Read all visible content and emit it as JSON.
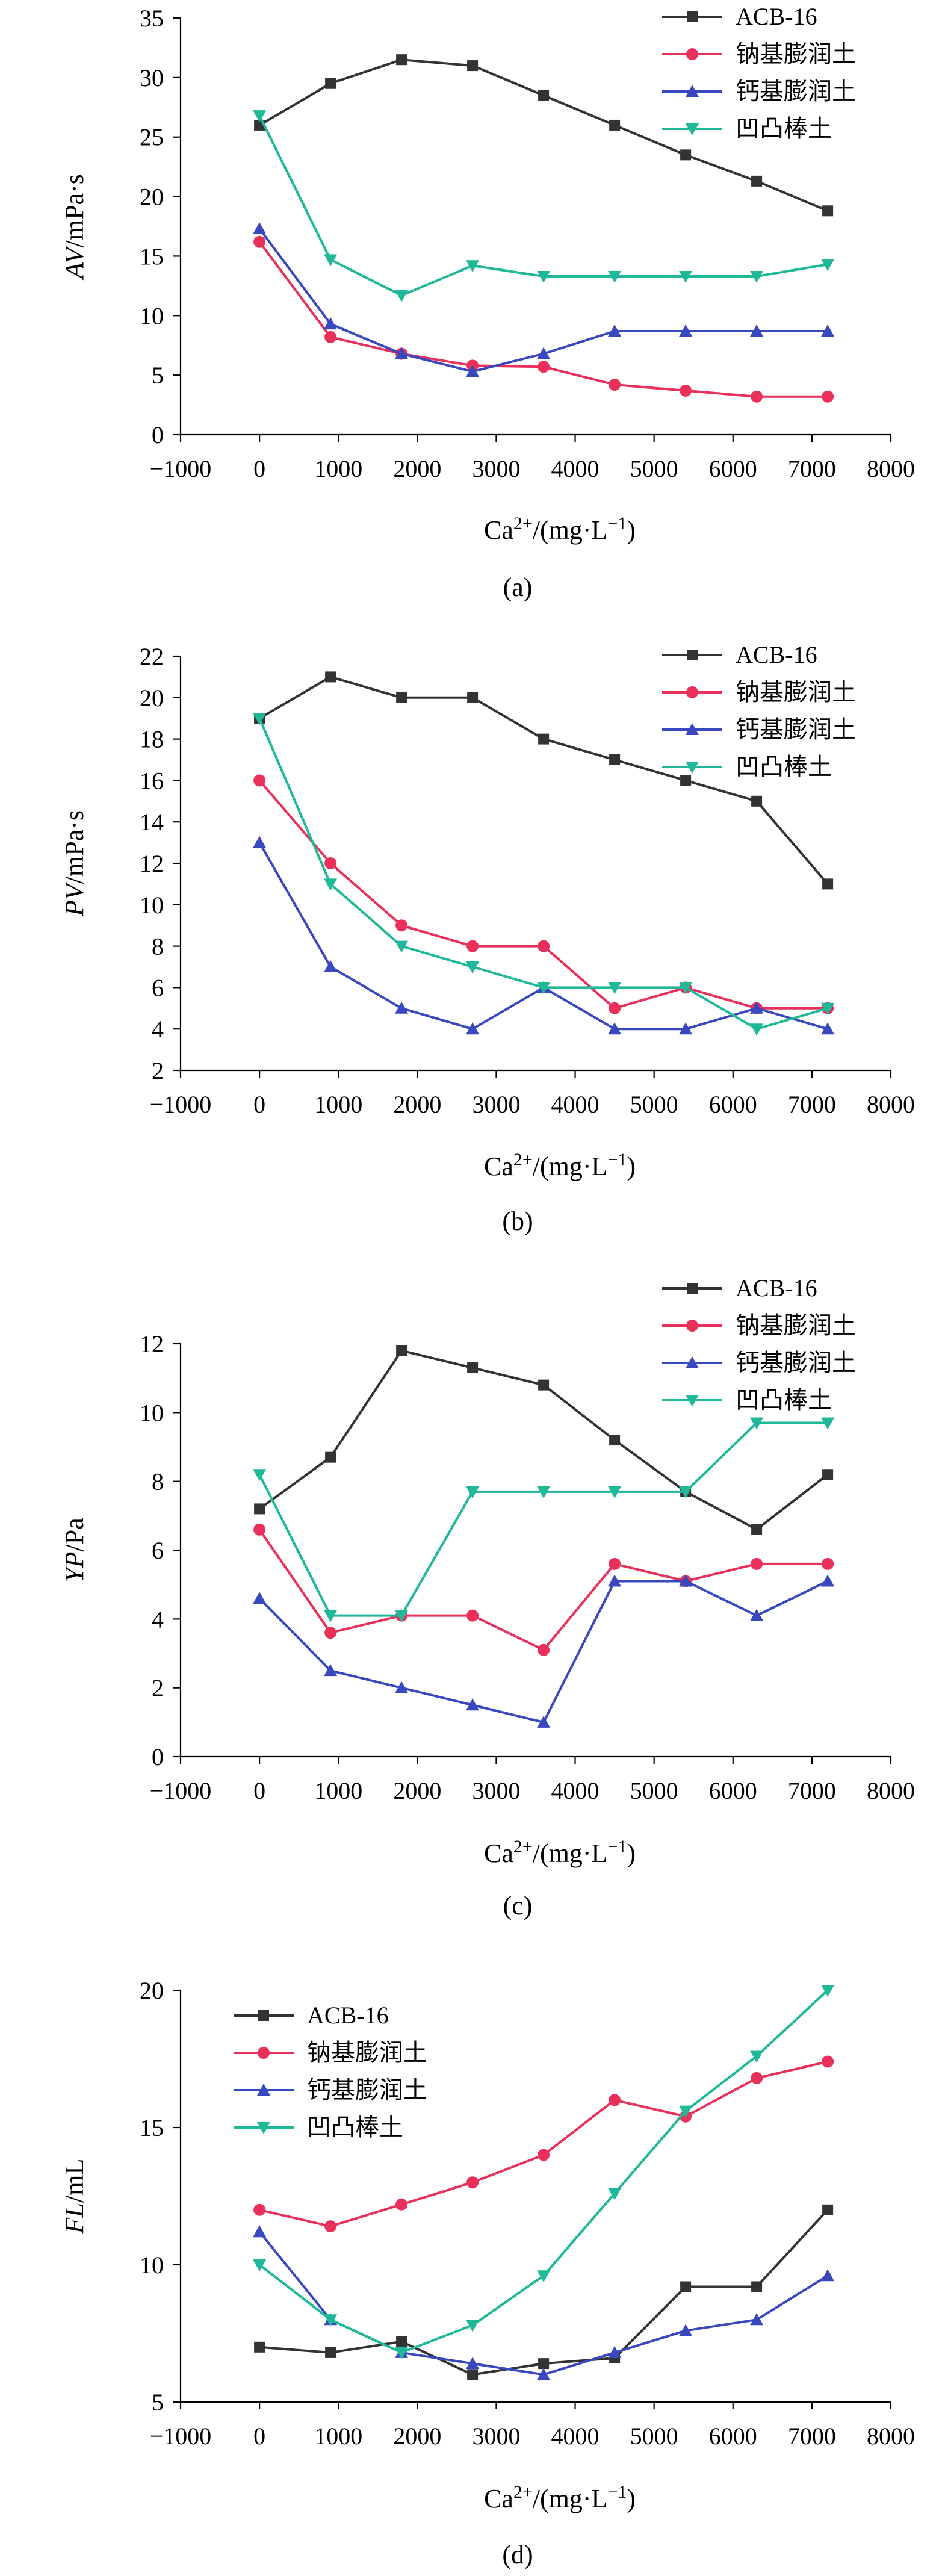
{
  "chart_data": [
    {
      "type": "line",
      "panel_label": "(a)",
      "ylabel_italic": "AV",
      "ylabel_rest": "/mPa·s",
      "xlabel": "Ca2+/(mg·L−1)",
      "xlabel_base": "Ca",
      "xlabel_sup": "2+",
      "xlabel_mid": "/(mg·L",
      "xlabel_sup2": "−1",
      "xlabel_end": ")",
      "xlim": [
        -1000,
        8000
      ],
      "ylim": [
        0,
        35
      ],
      "xticks": [
        "−1000",
        "0",
        "1000",
        "2000",
        "3000",
        "4000",
        "5000",
        "6000",
        "7000",
        "8000"
      ],
      "yticks": [
        "0",
        "5",
        "10",
        "15",
        "20",
        "25",
        "30",
        "35"
      ],
      "x": [
        0,
        900,
        1800,
        2700,
        3600,
        4500,
        5400,
        6300,
        7200
      ],
      "legend_position": "top-right",
      "series": [
        {
          "name": "ACB-16",
          "color": "#333333",
          "marker": "square",
          "values": [
            26,
            29.5,
            31.5,
            31,
            28.5,
            26,
            23.5,
            21.3,
            18.8
          ]
        },
        {
          "name": "钠基膨润土",
          "color": "#e8305a",
          "marker": "circle",
          "values": [
            16.2,
            8.2,
            6.8,
            5.8,
            5.7,
            4.2,
            3.7,
            3.2,
            3.2
          ]
        },
        {
          "name": "钙基膨润土",
          "color": "#3a48c0",
          "marker": "triangle-up",
          "values": [
            17.3,
            9.3,
            6.8,
            5.3,
            6.8,
            8.7,
            8.7,
            8.7,
            8.7
          ]
        },
        {
          "name": "凹凸棒土",
          "color": "#1fb898",
          "marker": "triangle-down",
          "values": [
            26.8,
            14.7,
            11.7,
            14.2,
            13.3,
            13.3,
            13.3,
            13.3,
            14.3
          ]
        }
      ]
    },
    {
      "type": "line",
      "panel_label": "(b)",
      "ylabel_italic": "PV",
      "ylabel_rest": "/mPa·s",
      "xlabel": "Ca2+/(mg·L−1)",
      "xlabel_base": "Ca",
      "xlabel_sup": "2+",
      "xlabel_mid": "/(mg·L",
      "xlabel_sup2": "−1",
      "xlabel_end": ")",
      "xlim": [
        -1000,
        8000
      ],
      "ylim": [
        2,
        22
      ],
      "xticks": [
        "−1000",
        "0",
        "1000",
        "2000",
        "3000",
        "4000",
        "5000",
        "6000",
        "7000",
        "8000"
      ],
      "yticks": [
        "2",
        "4",
        "6",
        "8",
        "10",
        "12",
        "14",
        "16",
        "18",
        "20",
        "22"
      ],
      "x": [
        0,
        900,
        1800,
        2700,
        3600,
        4500,
        5400,
        6300,
        7200
      ],
      "legend_position": "top-right",
      "series": [
        {
          "name": "ACB-16",
          "color": "#333333",
          "marker": "square",
          "values": [
            19,
            21,
            20,
            20,
            18,
            17,
            16,
            15,
            11
          ]
        },
        {
          "name": "钠基膨润土",
          "color": "#e8305a",
          "marker": "circle",
          "values": [
            16,
            12,
            9,
            8,
            8,
            5,
            6,
            5,
            5
          ]
        },
        {
          "name": "钙基膨润土",
          "color": "#3a48c0",
          "marker": "triangle-up",
          "values": [
            13,
            7,
            5,
            4,
            6,
            4,
            4,
            5,
            4
          ]
        },
        {
          "name": "凹凸棒土",
          "color": "#1fb898",
          "marker": "triangle-down",
          "values": [
            19,
            11,
            8,
            7,
            6,
            6,
            6,
            4,
            5
          ]
        }
      ]
    },
    {
      "type": "line",
      "panel_label": "(c)",
      "ylabel_italic": "YP",
      "ylabel_rest": "/Pa",
      "xlabel": "Ca2+/(mg·L−1)",
      "xlabel_base": "Ca",
      "xlabel_sup": "2+",
      "xlabel_mid": "/(mg·L",
      "xlabel_sup2": "−1",
      "xlabel_end": ")",
      "xlim": [
        -1000,
        8000
      ],
      "ylim": [
        0,
        12
      ],
      "xticks": [
        "−1000",
        "0",
        "1000",
        "2000",
        "3000",
        "4000",
        "5000",
        "6000",
        "7000",
        "8000"
      ],
      "yticks": [
        "0",
        "2",
        "4",
        "6",
        "8",
        "10",
        "12"
      ],
      "x": [
        0,
        900,
        1800,
        2700,
        3600,
        4500,
        5400,
        6300,
        7200
      ],
      "legend_position": "top-right",
      "series": [
        {
          "name": "ACB-16",
          "color": "#333333",
          "marker": "square",
          "values": [
            7.2,
            8.7,
            11.8,
            11.3,
            10.8,
            9.2,
            7.7,
            6.6,
            8.2
          ]
        },
        {
          "name": "钠基膨润土",
          "color": "#e8305a",
          "marker": "circle",
          "values": [
            6.6,
            3.6,
            4.1,
            4.1,
            3.1,
            5.6,
            5.1,
            5.6,
            5.6
          ]
        },
        {
          "name": "钙基膨润土",
          "color": "#3a48c0",
          "marker": "triangle-up",
          "values": [
            4.6,
            2.5,
            2.0,
            1.5,
            1.0,
            5.1,
            5.1,
            4.1,
            5.1
          ]
        },
        {
          "name": "凹凸棒土",
          "color": "#1fb898",
          "marker": "triangle-down",
          "values": [
            8.2,
            4.1,
            4.1,
            7.7,
            7.7,
            7.7,
            7.7,
            9.7,
            9.7
          ]
        }
      ]
    },
    {
      "type": "line",
      "panel_label": "(d)",
      "ylabel_italic": "FL",
      "ylabel_rest": "/mL",
      "xlabel": "Ca2+/(mg·L−1)",
      "xlabel_base": "Ca",
      "xlabel_sup": "2+",
      "xlabel_mid": "/(mg·L",
      "xlabel_sup2": "−1",
      "xlabel_end": ")",
      "xlim": [
        -1000,
        8000
      ],
      "ylim": [
        5,
        20
      ],
      "xticks": [
        "−1000",
        "0",
        "1000",
        "2000",
        "3000",
        "4000",
        "5000",
        "6000",
        "7000",
        "8000"
      ],
      "yticks": [
        "5",
        "10",
        "15",
        "20"
      ],
      "x": [
        0,
        900,
        1800,
        2700,
        3600,
        4500,
        5400,
        6300,
        7200
      ],
      "legend_position": "top-left",
      "series": [
        {
          "name": "ACB-16",
          "color": "#333333",
          "marker": "square",
          "values": [
            7.0,
            6.8,
            7.2,
            6.0,
            6.4,
            6.6,
            9.2,
            9.2,
            12.0
          ]
        },
        {
          "name": "钠基膨润土",
          "color": "#e8305a",
          "marker": "circle",
          "values": [
            12.0,
            11.4,
            12.2,
            13.0,
            14.0,
            16.0,
            15.4,
            16.8,
            17.4
          ]
        },
        {
          "name": "钙基膨润土",
          "color": "#3a48c0",
          "marker": "triangle-up",
          "values": [
            11.2,
            8.0,
            6.8,
            6.4,
            6.0,
            6.8,
            7.6,
            8.0,
            9.6
          ]
        },
        {
          "name": "凹凸棒土",
          "color": "#1fb898",
          "marker": "triangle-down",
          "values": [
            10.0,
            8.0,
            6.8,
            7.8,
            9.6,
            12.6,
            15.6,
            17.6,
            20.0
          ]
        }
      ]
    }
  ]
}
